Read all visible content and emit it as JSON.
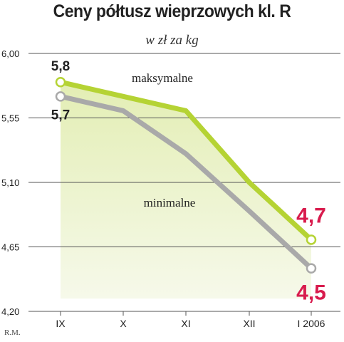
{
  "chart_data": {
    "type": "line",
    "title": "Ceny półtusz wieprzowych kl. R",
    "subtitle": "w zł za kg",
    "categories": [
      "IX",
      "X",
      "XI",
      "XII",
      "I 2006"
    ],
    "y_ticks": [
      "6,00",
      "5,55",
      "5,10",
      "4,65",
      "4,20"
    ],
    "y_tick_values": [
      6.0,
      5.55,
      5.1,
      4.65,
      4.2
    ],
    "ylim": [
      4.2,
      6.0
    ],
    "grid": "horizontal",
    "series": [
      {
        "name": "maksymalne",
        "values": [
          5.8,
          5.7,
          5.6,
          5.1,
          4.7
        ],
        "color": "#b5d334"
      },
      {
        "name": "minimalne",
        "values": [
          5.7,
          5.6,
          5.3,
          4.9,
          4.5
        ],
        "color": "#a9a9a9"
      }
    ],
    "annotations": [
      {
        "text": "5,8",
        "series": 0,
        "index": 0,
        "color": "#222222"
      },
      {
        "text": "5,7",
        "series": 1,
        "index": 0,
        "color": "#222222"
      },
      {
        "text": "4,7",
        "series": 0,
        "index": 4,
        "color": "#d81b4d"
      },
      {
        "text": "4,5",
        "series": 1,
        "index": 4,
        "color": "#d81b4d"
      }
    ],
    "area_fill_color": "#eaf2c8"
  },
  "credit": "R.M."
}
